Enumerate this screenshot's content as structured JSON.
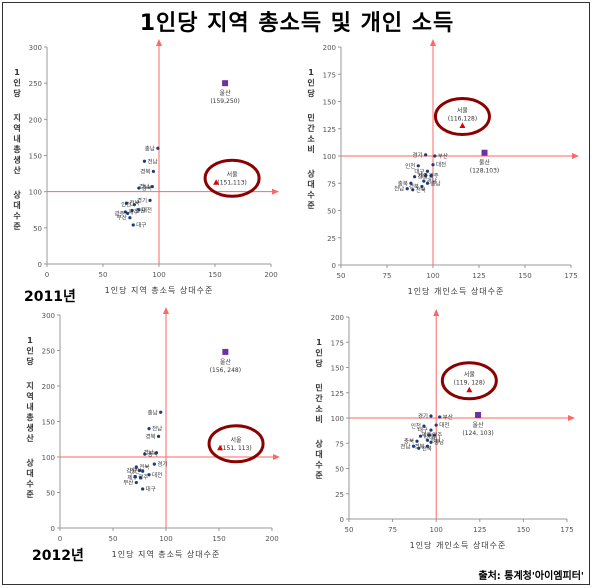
{
  "page": {
    "title": "1인당 지역 총소득 및 개인 소득",
    "source": "출처: 통계청'아이엠피터'"
  },
  "year_labels": [
    "2011년",
    "2012년"
  ],
  "chart_data": [
    {
      "type": "scatter",
      "xlabel": "1인당 지역 총소득 상대수준",
      "ylabel": [
        "1인당",
        "지역내총생산",
        "상대수준"
      ],
      "xlim": [
        0,
        200
      ],
      "ylim": [
        0,
        300
      ],
      "xticks": [
        "0",
        "50",
        "100",
        "150",
        "200"
      ],
      "yticks": [
        "0",
        "50",
        "100",
        "150",
        "200",
        "250",
        "300"
      ],
      "reference": {
        "x": 100,
        "y": 100
      },
      "grid": false,
      "highlights": [
        {
          "name": "울산",
          "coord": "(159,250)",
          "x": 159,
          "y": 250,
          "color": "#7030a0",
          "marker": "square"
        },
        {
          "name": "서울",
          "coord": "(151,113)",
          "x": 151,
          "y": 113,
          "color": "#e00000",
          "marker": "triangle",
          "circled": true
        }
      ],
      "points": [
        {
          "name": "충남",
          "x": 99,
          "y": 160
        },
        {
          "name": "전남",
          "x": 87,
          "y": 142
        },
        {
          "name": "경북",
          "x": 95,
          "y": 128
        },
        {
          "name": "충북",
          "x": 82,
          "y": 105
        },
        {
          "name": "경남",
          "x": 94,
          "y": 107
        },
        {
          "name": "전북",
          "x": 71,
          "y": 84
        },
        {
          "name": "인천",
          "x": 78,
          "y": 82
        },
        {
          "name": "강원",
          "x": 76,
          "y": 74
        },
        {
          "name": "광주",
          "x": 72,
          "y": 70
        },
        {
          "name": "대전",
          "x": 82,
          "y": 75
        },
        {
          "name": "부산",
          "x": 74,
          "y": 64
        },
        {
          "name": "제주",
          "x": 70,
          "y": 72
        },
        {
          "name": "경기",
          "x": 92,
          "y": 88
        },
        {
          "name": "대구",
          "x": 77,
          "y": 54
        }
      ]
    },
    {
      "type": "scatter",
      "xlabel": "1인당 개인소득 상대수준",
      "ylabel": [
        "1인당",
        "민간소비",
        "상대수준"
      ],
      "xlim": [
        50,
        175
      ],
      "ylim": [
        0,
        200
      ],
      "xticks": [
        "50",
        "75",
        "100",
        "125",
        "150",
        "175"
      ],
      "yticks": [
        "0",
        "25",
        "50",
        "75",
        "100",
        "125",
        "150",
        "175",
        "200"
      ],
      "reference": {
        "x": 100,
        "y": 100
      },
      "grid": false,
      "highlights": [
        {
          "name": "서울",
          "coord": "(116,128)",
          "x": 116,
          "y": 128,
          "color": "#e00000",
          "marker": "triangle",
          "circled": true
        },
        {
          "name": "울산",
          "coord": "(128,103)",
          "x": 128,
          "y": 103,
          "color": "#7030a0",
          "marker": "square"
        }
      ],
      "points": [
        {
          "name": "경기",
          "x": 96,
          "y": 101
        },
        {
          "name": "부산",
          "x": 101,
          "y": 100
        },
        {
          "name": "인천",
          "x": 92,
          "y": 91
        },
        {
          "name": "대전",
          "x": 100,
          "y": 92
        },
        {
          "name": "대구",
          "x": 97,
          "y": 86
        },
        {
          "name": "광주",
          "x": 96,
          "y": 82
        },
        {
          "name": "제주",
          "x": 99,
          "y": 82
        },
        {
          "name": "강원",
          "x": 90,
          "y": 81
        },
        {
          "name": "충북",
          "x": 88,
          "y": 75
        },
        {
          "name": "경남",
          "x": 95,
          "y": 77
        },
        {
          "name": "경북",
          "x": 94,
          "y": 72
        },
        {
          "name": "충남",
          "x": 97,
          "y": 75
        },
        {
          "name": "전남",
          "x": 86,
          "y": 70
        },
        {
          "name": "전북",
          "x": 89,
          "y": 69
        }
      ]
    },
    {
      "type": "scatter",
      "xlabel": "1인당 지역 총소득 상대수준",
      "ylabel": [
        "1인당",
        "지역내총생산",
        "상대수준"
      ],
      "xlim": [
        0,
        200
      ],
      "ylim": [
        0,
        300
      ],
      "xticks": [
        "0",
        "50",
        "100",
        "150",
        "200"
      ],
      "yticks": [
        "0",
        "50",
        "100",
        "150",
        "200",
        "250",
        "300"
      ],
      "reference": {
        "x": 100,
        "y": 100
      },
      "grid": false,
      "highlights": [
        {
          "name": "울산",
          "coord": "(156, 248)",
          "x": 156,
          "y": 248,
          "color": "#7030a0",
          "marker": "square"
        },
        {
          "name": "서울",
          "coord": "(151, 113)",
          "x": 151,
          "y": 113,
          "color": "#e00000",
          "marker": "triangle",
          "circled": true
        }
      ],
      "points": [
        {
          "name": "충남",
          "x": 95,
          "y": 163
        },
        {
          "name": "전남",
          "x": 84,
          "y": 140
        },
        {
          "name": "경북",
          "x": 93,
          "y": 129
        },
        {
          "name": "충북",
          "x": 80,
          "y": 104
        },
        {
          "name": "경남",
          "x": 91,
          "y": 106
        },
        {
          "name": "경기",
          "x": 89,
          "y": 90
        },
        {
          "name": "강원",
          "x": 75,
          "y": 81
        },
        {
          "name": "전북",
          "x": 72,
          "y": 86
        },
        {
          "name": "인천",
          "x": 78,
          "y": 80
        },
        {
          "name": "광주",
          "x": 71,
          "y": 72
        },
        {
          "name": "제주",
          "x": 76,
          "y": 71
        },
        {
          "name": "대전",
          "x": 84,
          "y": 75
        },
        {
          "name": "부산",
          "x": 72,
          "y": 64
        },
        {
          "name": "대구",
          "x": 78,
          "y": 55
        }
      ]
    },
    {
      "type": "scatter",
      "xlabel": "1인당 개인소득 상대수준",
      "ylabel": [
        "1인당",
        "민간소비",
        "상대수준"
      ],
      "xlim": [
        50,
        175
      ],
      "ylim": [
        0,
        200
      ],
      "xticks": [
        "50",
        "75",
        "100",
        "125",
        "150",
        "175"
      ],
      "yticks": [
        "0",
        "25",
        "50",
        "75",
        "100",
        "125",
        "150",
        "175",
        "200"
      ],
      "reference": {
        "x": 100,
        "y": 100
      },
      "grid": false,
      "highlights": [
        {
          "name": "서울",
          "coord": "(119, 128)",
          "x": 119,
          "y": 128,
          "color": "#e00000",
          "marker": "triangle",
          "circled": true
        },
        {
          "name": "울산",
          "coord": "(124, 103)",
          "x": 124,
          "y": 103,
          "color": "#7030a0",
          "marker": "square"
        }
      ],
      "points": [
        {
          "name": "경기",
          "x": 97,
          "y": 102
        },
        {
          "name": "부산",
          "x": 102,
          "y": 101
        },
        {
          "name": "인천",
          "x": 93,
          "y": 92
        },
        {
          "name": "대전",
          "x": 100,
          "y": 93
        },
        {
          "name": "대구",
          "x": 97,
          "y": 88
        },
        {
          "name": "광주",
          "x": 96,
          "y": 83
        },
        {
          "name": "제주",
          "x": 99,
          "y": 83
        },
        {
          "name": "강원",
          "x": 91,
          "y": 82
        },
        {
          "name": "충북",
          "x": 89,
          "y": 77
        },
        {
          "name": "경남",
          "x": 95,
          "y": 78
        },
        {
          "name": "경북",
          "x": 95,
          "y": 72
        },
        {
          "name": "충남",
          "x": 97,
          "y": 76
        },
        {
          "name": "전남",
          "x": 87,
          "y": 72
        },
        {
          "name": "전북",
          "x": 90,
          "y": 70
        }
      ]
    }
  ]
}
